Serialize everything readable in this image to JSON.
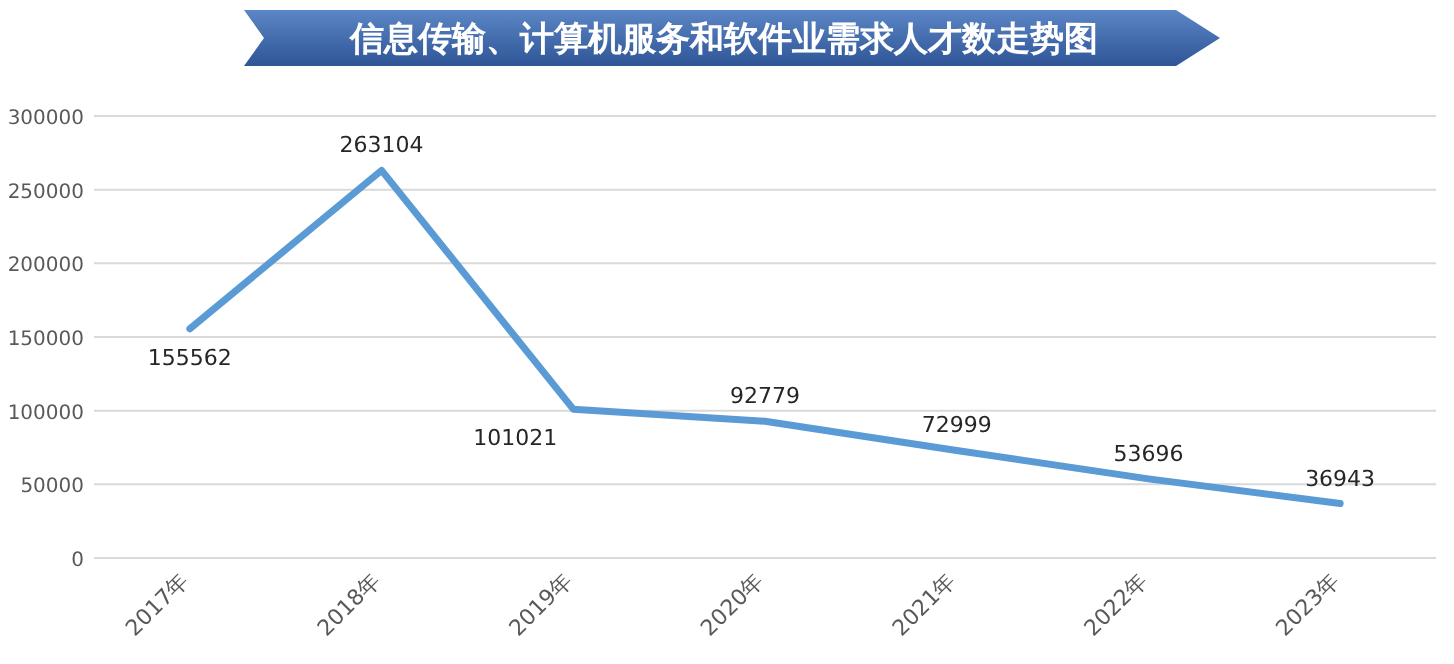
{
  "chart_data": {
    "type": "line",
    "title": "信息传输、计算机服务和软件业需求人才数走势图",
    "categories": [
      "2017年",
      "2018年",
      "2019年",
      "2020年",
      "2021年",
      "2022年",
      "2023年"
    ],
    "series": [
      {
        "color": "#5b9bd5",
        "values": [
          155562,
          263104,
          101021,
          92779,
          72999,
          53696,
          36943
        ]
      }
    ],
    "ylim": [
      0,
      300000
    ],
    "yticks": [
      0,
      50000,
      100000,
      150000,
      200000,
      250000,
      300000
    ],
    "grid": "y",
    "data_labels": true,
    "marker": "none",
    "line_style": "solid"
  }
}
